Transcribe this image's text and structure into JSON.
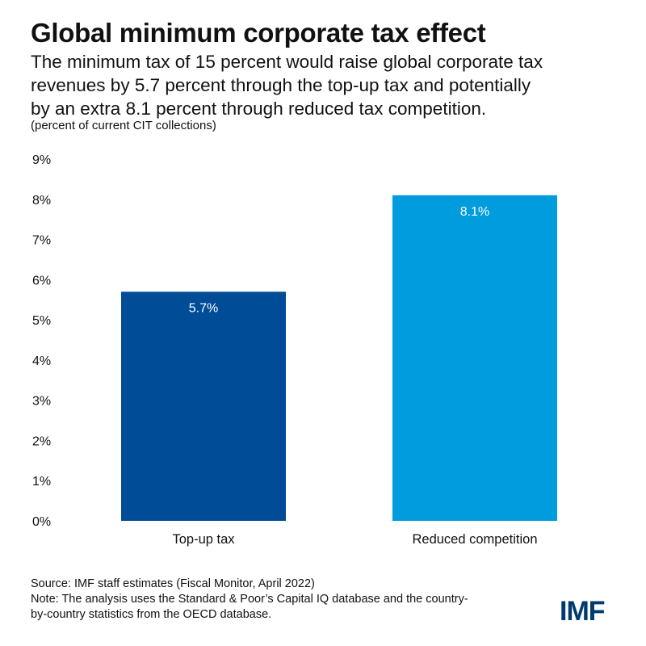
{
  "header": {
    "title": "Global minimum corporate tax effect",
    "subtitle_lines": [
      "The minimum tax of 15 percent would raise global corporate tax",
      "revenues by 5.7 percent through the top-up tax and potentially",
      "by an extra 8.1 percent through reduced tax competition."
    ],
    "unit_note": "(percent of current CIT collections)"
  },
  "chart_data": {
    "type": "bar",
    "title": "Global minimum corporate tax effect",
    "xlabel": "",
    "ylabel": "(percent of current CIT collections)",
    "categories": [
      "Top-up tax",
      "Reduced competition"
    ],
    "values": [
      5.7,
      8.1
    ],
    "data_labels": [
      "5.7%",
      "8.1%"
    ],
    "bar_colors": [
      "#004c97",
      "#009cde"
    ],
    "label_color": "#ffffff",
    "ylim": [
      0,
      9
    ],
    "yticks": [
      0,
      1,
      2,
      3,
      4,
      5,
      6,
      7,
      8,
      9
    ],
    "ytick_labels": [
      "0%",
      "1%",
      "2%",
      "3%",
      "4%",
      "5%",
      "6%",
      "7%",
      "8%",
      "9%"
    ],
    "grid": false,
    "legend": "none"
  },
  "footer": {
    "source": "Source: IMF staff estimates (Fiscal Monitor, April 2022)",
    "note_lines": [
      "Note: The analysis uses the Standard & Poor’s Capital IQ database and the country-",
      "by-country statistics from the OECD database."
    ]
  },
  "logo": {
    "text": "IMF",
    "color": "#003a70"
  }
}
